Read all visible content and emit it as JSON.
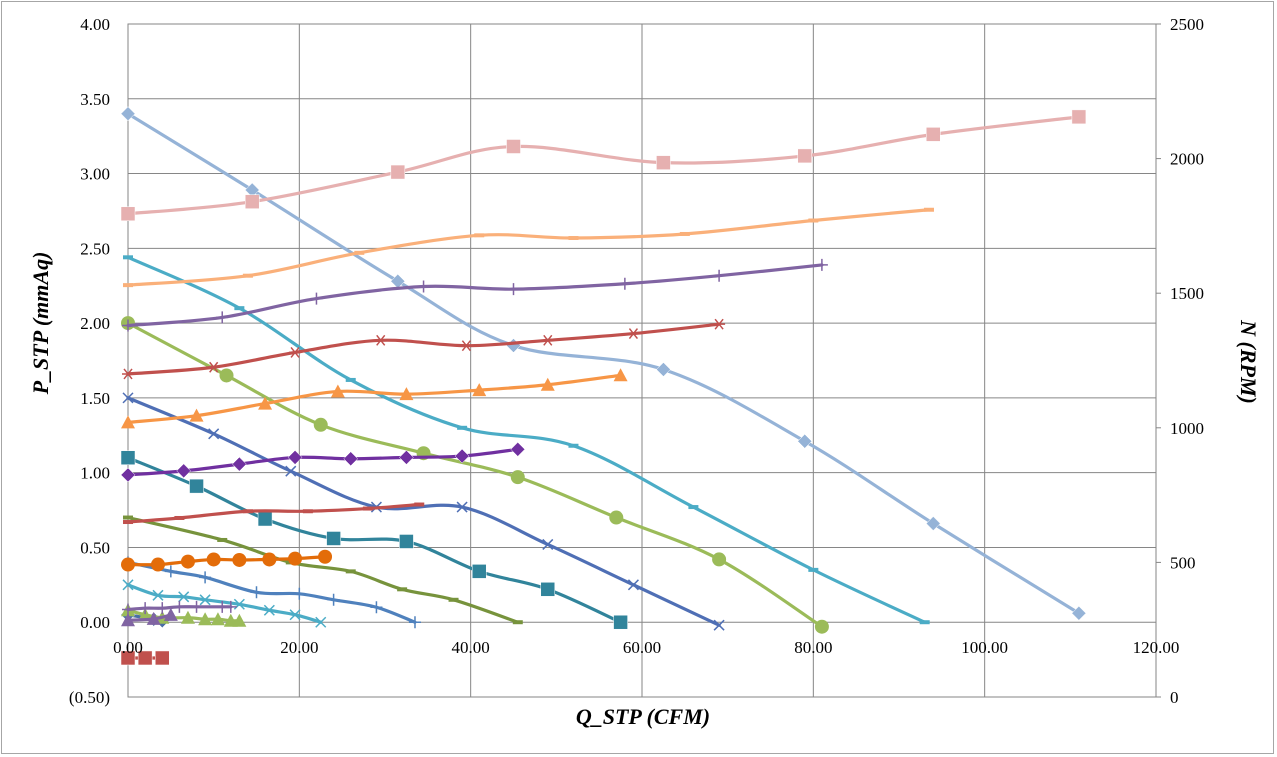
{
  "chart_data": {
    "type": "line",
    "title": "",
    "xlabel": "Q_STP (CFM)",
    "ylabel": "P_STP (mmAq)",
    "y2label": "N (RPM)",
    "xlim": [
      0,
      120
    ],
    "ylim": [
      -0.5,
      4.0
    ],
    "y2lim": [
      0,
      2500
    ],
    "x_ticks": [
      "0.00",
      "20.00",
      "40.00",
      "60.00",
      "80.00",
      "100.00",
      "120.00"
    ],
    "y_ticks": [
      "(0.50)",
      "0.00",
      "0.50",
      "1.00",
      "1.50",
      "2.00",
      "2.50",
      "3.00",
      "3.50",
      "4.00"
    ],
    "y2_ticks": [
      "0",
      "500",
      "1000",
      "1500",
      "2000",
      "2500"
    ],
    "negative_tick_color": "#ff0000",
    "grid": true,
    "legend": "none",
    "series": [
      {
        "axis": "y",
        "color": "#4a6fa5",
        "marker": "diamond",
        "points": [
          [
            0,
            0.05
          ],
          [
            3,
            0.02
          ],
          [
            4,
            0.01
          ]
        ]
      },
      {
        "axis": "y",
        "color": "#9bbb59",
        "marker": "triangle",
        "points": [
          [
            0,
            0.08
          ],
          [
            2,
            0.05
          ],
          [
            4,
            0.03
          ],
          [
            7,
            0.03
          ],
          [
            9,
            0.02
          ],
          [
            10.5,
            0.02
          ],
          [
            12,
            0.01
          ],
          [
            13,
            0.01
          ]
        ]
      },
      {
        "axis": "y",
        "color": "#4bacc6",
        "marker": "x",
        "points": [
          [
            0,
            0.25
          ],
          [
            3.5,
            0.18
          ],
          [
            6.5,
            0.17
          ],
          [
            9,
            0.15
          ],
          [
            13,
            0.12
          ],
          [
            16.5,
            0.08
          ],
          [
            19.5,
            0.05
          ],
          [
            22.5,
            0.0
          ]
        ]
      },
      {
        "axis": "y",
        "color": "#4f81bd",
        "marker": "plus",
        "points": [
          [
            0,
            0.4
          ],
          [
            5,
            0.34
          ],
          [
            9,
            0.3
          ],
          [
            15,
            0.2
          ],
          [
            20,
            0.19
          ],
          [
            24,
            0.15
          ],
          [
            29,
            0.1
          ],
          [
            33.5,
            0.0
          ]
        ]
      },
      {
        "axis": "y",
        "color": "#77933c",
        "marker": "dash",
        "points": [
          [
            0,
            0.7
          ],
          [
            11,
            0.55
          ],
          [
            19,
            0.4
          ],
          [
            26,
            0.34
          ],
          [
            32,
            0.22
          ],
          [
            38,
            0.15
          ],
          [
            45.5,
            0.0
          ]
        ]
      },
      {
        "axis": "y",
        "color": "#31849b",
        "marker": "square",
        "points": [
          [
            0,
            1.1
          ],
          [
            8,
            0.91
          ],
          [
            16,
            0.69
          ],
          [
            24,
            0.56
          ],
          [
            32.5,
            0.54
          ],
          [
            41,
            0.34
          ],
          [
            49,
            0.22
          ],
          [
            57.5,
            0.0
          ]
        ]
      },
      {
        "axis": "y",
        "color": "#4f6fb5",
        "marker": "x",
        "points": [
          [
            0,
            1.5
          ],
          [
            10,
            1.26
          ],
          [
            19,
            1.01
          ],
          [
            29,
            0.77
          ],
          [
            39,
            0.77
          ],
          [
            49,
            0.52
          ],
          [
            59,
            0.25
          ],
          [
            69,
            -0.02
          ]
        ]
      },
      {
        "axis": "y",
        "color": "#9bbb59",
        "marker": "circle",
        "points": [
          [
            0,
            2.0
          ],
          [
            11.5,
            1.65
          ],
          [
            22.5,
            1.32
          ],
          [
            34.5,
            1.13
          ],
          [
            45.5,
            0.97
          ],
          [
            57,
            0.7
          ],
          [
            69,
            0.42
          ],
          [
            81,
            -0.03
          ]
        ]
      },
      {
        "axis": "y",
        "color": "#4bacc6",
        "marker": "dash",
        "points": [
          [
            0,
            2.44
          ],
          [
            13,
            2.1
          ],
          [
            26,
            1.62
          ],
          [
            39,
            1.3
          ],
          [
            52,
            1.18
          ],
          [
            66,
            0.77
          ],
          [
            80,
            0.35
          ],
          [
            93,
            0.0
          ]
        ]
      },
      {
        "axis": "y",
        "color": "#95b3d7",
        "marker": "diamond",
        "points": [
          [
            0,
            3.4
          ],
          [
            14.5,
            2.89
          ],
          [
            31.5,
            2.28
          ],
          [
            45,
            1.85
          ],
          [
            62.5,
            1.69
          ],
          [
            79,
            1.21
          ],
          [
            94,
            0.66
          ],
          [
            111,
            0.06
          ]
        ]
      },
      {
        "axis": "y2",
        "color": "#c0504d",
        "marker": "dash",
        "points": [
          [
            0,
            650
          ],
          [
            6,
            665
          ],
          [
            14,
            690
          ],
          [
            21,
            690
          ],
          [
            28,
            700
          ],
          [
            34,
            715
          ]
        ]
      },
      {
        "axis": "y2",
        "color": "#c0504d",
        "marker": "square",
        "points": [
          [
            0,
            145
          ],
          [
            2,
            145
          ],
          [
            4,
            145
          ]
        ]
      },
      {
        "axis": "y2",
        "color": "#8064a2",
        "marker": "triangle",
        "points": [
          [
            0,
            285
          ],
          [
            3,
            290
          ],
          [
            5,
            305
          ]
        ]
      },
      {
        "axis": "y2",
        "color": "#8064a2",
        "marker": "plus",
        "points": [
          [
            0,
            325
          ],
          [
            2,
            330
          ],
          [
            4,
            330
          ],
          [
            6,
            335
          ],
          [
            8,
            335
          ],
          [
            11,
            335
          ],
          [
            12,
            335
          ]
        ]
      },
      {
        "axis": "y2",
        "color": "#e36c09",
        "marker": "circle",
        "points": [
          [
            0,
            492
          ],
          [
            3.5,
            492
          ],
          [
            7,
            503
          ],
          [
            10,
            511
          ],
          [
            13,
            509
          ],
          [
            16.5,
            511
          ],
          [
            19.5,
            514
          ],
          [
            23,
            521
          ]
        ]
      },
      {
        "axis": "y2",
        "color": "#7030a0",
        "marker": "diamond",
        "points": [
          [
            0,
            825
          ],
          [
            6.5,
            840
          ],
          [
            13,
            865
          ],
          [
            19.5,
            890
          ],
          [
            26,
            885
          ],
          [
            32.5,
            890
          ],
          [
            39,
            895
          ],
          [
            45.5,
            920
          ]
        ]
      },
      {
        "axis": "y2",
        "color": "#f79646",
        "marker": "triangle",
        "points": [
          [
            0,
            1020
          ],
          [
            8,
            1045
          ],
          [
            16,
            1090
          ],
          [
            24.5,
            1135
          ],
          [
            32.5,
            1125
          ],
          [
            41,
            1140
          ],
          [
            49,
            1160
          ],
          [
            57.5,
            1195
          ]
        ]
      },
      {
        "axis": "y2",
        "color": "#c0504d",
        "marker": "asterisk",
        "points": [
          [
            0,
            1200
          ],
          [
            10,
            1225
          ],
          [
            19.5,
            1280
          ],
          [
            29.5,
            1325
          ],
          [
            39.5,
            1305
          ],
          [
            49,
            1325
          ],
          [
            59,
            1350
          ],
          [
            69,
            1385
          ]
        ]
      },
      {
        "axis": "y2",
        "color": "#8064a2",
        "marker": "plus",
        "points": [
          [
            0,
            1380
          ],
          [
            11,
            1410
          ],
          [
            22,
            1480
          ],
          [
            34.5,
            1525
          ],
          [
            45,
            1515
          ],
          [
            58,
            1535
          ],
          [
            69,
            1565
          ],
          [
            81,
            1605
          ]
        ]
      },
      {
        "axis": "y2",
        "color": "#fab07a",
        "marker": "dash",
        "points": [
          [
            0,
            1530
          ],
          [
            14,
            1565
          ],
          [
            27,
            1650
          ],
          [
            41,
            1715
          ],
          [
            52,
            1705
          ],
          [
            65,
            1720
          ],
          [
            80,
            1770
          ],
          [
            93.5,
            1810
          ]
        ]
      },
      {
        "axis": "y2",
        "color": "#e6b0b0",
        "marker": "square",
        "points": [
          [
            0,
            1795
          ],
          [
            14.5,
            1840
          ],
          [
            31.5,
            1950
          ],
          [
            45,
            2045
          ],
          [
            62.5,
            1985
          ],
          [
            79,
            2010
          ],
          [
            94,
            2090
          ],
          [
            111,
            2155
          ]
        ]
      }
    ]
  }
}
